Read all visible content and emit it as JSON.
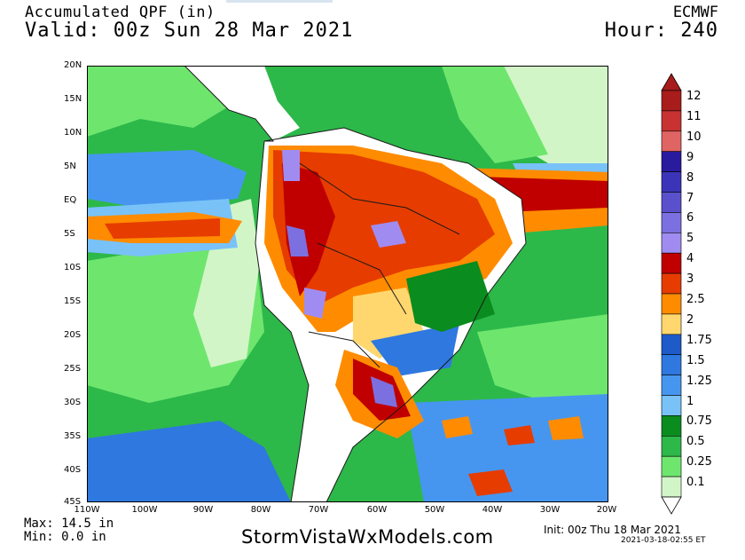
{
  "header": {
    "title_line1": "Accumulated QPF (in)",
    "title_line2": "Valid: 00z Sun 28 Mar 2021",
    "model": "ECMWF",
    "hour": "Hour: 240"
  },
  "map": {
    "lat_labels": [
      "20N",
      "15N",
      "10N",
      "5N",
      "EQ",
      "5S",
      "10S",
      "15S",
      "20S",
      "25S",
      "30S",
      "35S",
      "40S",
      "45S"
    ],
    "lon_labels": [
      "110W",
      "100W",
      "90W",
      "80W",
      "70W",
      "60W",
      "50W",
      "40W",
      "30W",
      "20W"
    ],
    "ocean_color": "#2db84a",
    "land_color": "#ffffff"
  },
  "legend": {
    "levels": [
      "12",
      "11",
      "10",
      "9",
      "8",
      "7",
      "6",
      "5",
      "4",
      "3",
      "2.5",
      "2",
      "1.75",
      "1.5",
      "1.25",
      "1",
      "0.75",
      "0.5",
      "0.25",
      "0.1"
    ],
    "colors": [
      "#a81c1c",
      "#c83232",
      "#e06464",
      "#2a1a9e",
      "#3c34b8",
      "#5a50cc",
      "#7c70e0",
      "#a08cf0",
      "#c00000",
      "#e63c00",
      "#ff8c00",
      "#ffd76e",
      "#1e5ac8",
      "#2e78e0",
      "#4696f0",
      "#78c2f8",
      "#0a8c1e",
      "#2db84a",
      "#6ee66e",
      "#d2f5c8"
    ]
  },
  "footer": {
    "max": "Max: 14.5 in",
    "min": "Min: 0.0 in",
    "watermark": "StormVistaWxModels.com",
    "init": "Init: 00z Thu 18 Mar 2021",
    "generated": "2021-03-18-02:55 ET"
  }
}
